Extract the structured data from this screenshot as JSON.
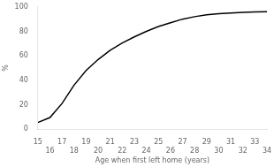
{
  "chart_data": {
    "type": "line",
    "x": [
      15,
      16,
      17,
      18,
      19,
      20,
      21,
      22,
      23,
      24,
      25,
      26,
      27,
      28,
      29,
      30,
      31,
      32,
      33,
      34
    ],
    "values": [
      5.5,
      9.5,
      21.0,
      36.0,
      48.0,
      57.0,
      64.5,
      70.5,
      75.5,
      80.0,
      84.0,
      87.0,
      90.0,
      92.0,
      93.5,
      94.5,
      95.0,
      95.5,
      95.8,
      96.0
    ],
    "color": "#000000",
    "xlabel": "Age when first left home (years)",
    "ylabel": "%",
    "xlim": [
      15,
      34
    ],
    "ylim": [
      0,
      100
    ],
    "xticks": [
      15,
      16,
      17,
      18,
      19,
      20,
      21,
      22,
      23,
      24,
      25,
      26,
      27,
      28,
      29,
      30,
      31,
      32,
      33,
      34
    ],
    "yticks": [
      0,
      20,
      40,
      60,
      80,
      100
    ],
    "grid": false
  }
}
